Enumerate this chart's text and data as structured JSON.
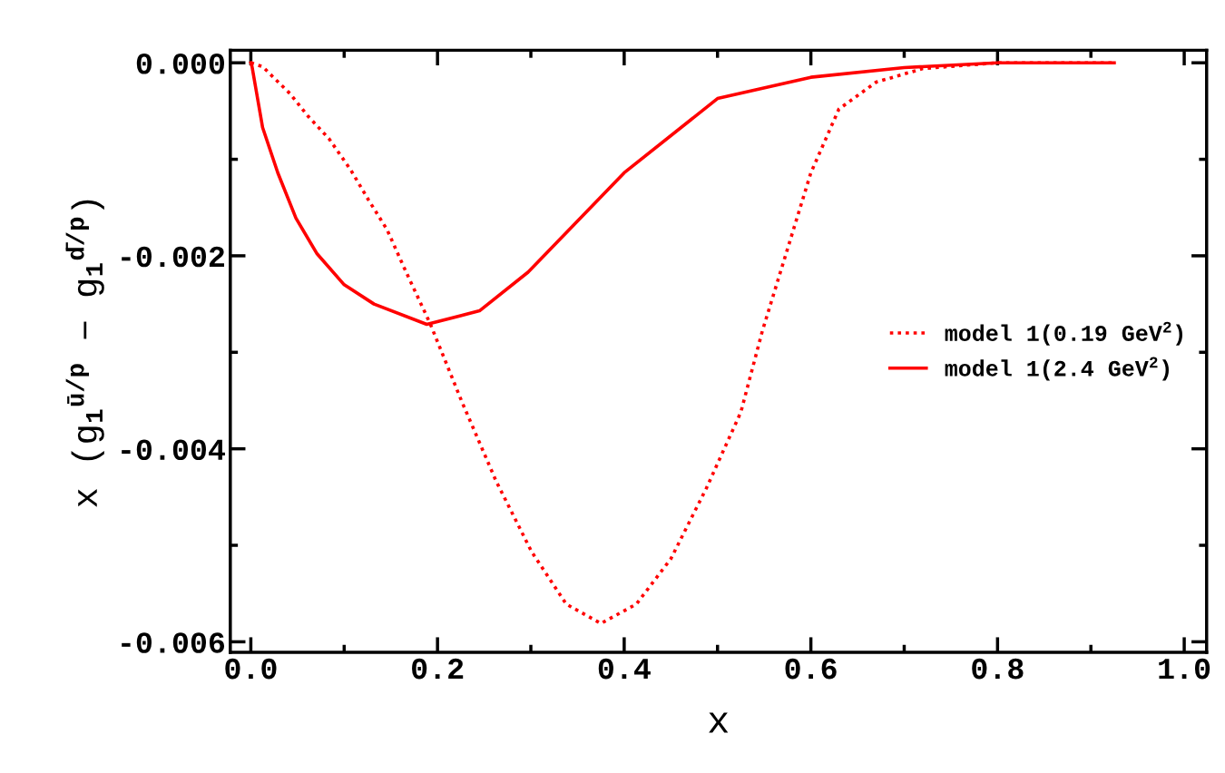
{
  "chart_data": {
    "type": "line",
    "xlabel": "x",
    "ylabel": "x (g$_{1}$$^{ū/p}$ − g$_{1}$$^{d̄/p}$)",
    "xlim": [
      -0.022,
      1.024
    ],
    "ylim": [
      -0.00611,
      0.00013
    ],
    "xticks": [
      {
        "value": 0,
        "label": "0.0"
      },
      {
        "value": 0.1,
        "label": null
      },
      {
        "value": 0.2,
        "label": "0.2"
      },
      {
        "value": 0.3,
        "label": null
      },
      {
        "value": 0.4,
        "label": "0.4"
      },
      {
        "value": 0.5,
        "label": null
      },
      {
        "value": 0.6,
        "label": "0.6"
      },
      {
        "value": 0.7,
        "label": null
      },
      {
        "value": 0.8,
        "label": "0.8"
      },
      {
        "value": 0.9,
        "label": null
      },
      {
        "value": 1.0,
        "label": "1.0"
      }
    ],
    "yticks": [
      {
        "value": -0.006,
        "label": "-0.006"
      },
      {
        "value": -0.005,
        "label": null
      },
      {
        "value": -0.004,
        "label": "-0.004"
      },
      {
        "value": -0.003,
        "label": null
      },
      {
        "value": -0.002,
        "label": "-0.002"
      },
      {
        "value": -0.001,
        "label": null
      },
      {
        "value": 0,
        "label": "0.000"
      }
    ],
    "legend": "center right",
    "series": [
      {
        "name": "model 1(0.19 GeV$^{2}$)",
        "color": "#ff0000",
        "line_style": "dotted",
        "x": [
          0,
          0.0126,
          0.042,
          0.061,
          0.084,
          0.107,
          0.126,
          0.146,
          0.165,
          0.192,
          0.226,
          0.263,
          0.301,
          0.338,
          0.375,
          0.413,
          0.45,
          0.488,
          0.525,
          0.548,
          0.6,
          0.63,
          0.67,
          0.72,
          0.8,
          0.925
        ],
        "values": [
          0,
          -4e-05,
          -0.00032,
          -0.00055,
          -0.00079,
          -0.00111,
          -0.00142,
          -0.00173,
          -0.00214,
          -0.0027,
          -0.00351,
          -0.00434,
          -0.00507,
          -0.00561,
          -0.00581,
          -0.00561,
          -0.00514,
          -0.00441,
          -0.00362,
          -0.00278,
          -0.00114,
          -0.00048,
          -0.0002,
          -6e-05,
          0,
          0
        ]
      },
      {
        "name": "model 1(2.4 GeV$^{2}$)",
        "color": "#ff0000",
        "line_style": "solid",
        "x": [
          0,
          0.0013,
          0.0126,
          0.0289,
          0.0483,
          0.071,
          0.1,
          0.132,
          0.1885,
          0.245,
          0.297,
          0.4,
          0.5,
          0.6,
          0.7,
          0.8,
          0.925
        ],
        "values": [
          0,
          -4e-05,
          -0.00067,
          -0.00114,
          -0.00161,
          -0.00198,
          -0.0023,
          -0.0025,
          -0.00271,
          -0.00257,
          -0.00217,
          -0.00114,
          -0.00037,
          -0.00015,
          -5e-05,
          0,
          0
        ]
      }
    ]
  }
}
